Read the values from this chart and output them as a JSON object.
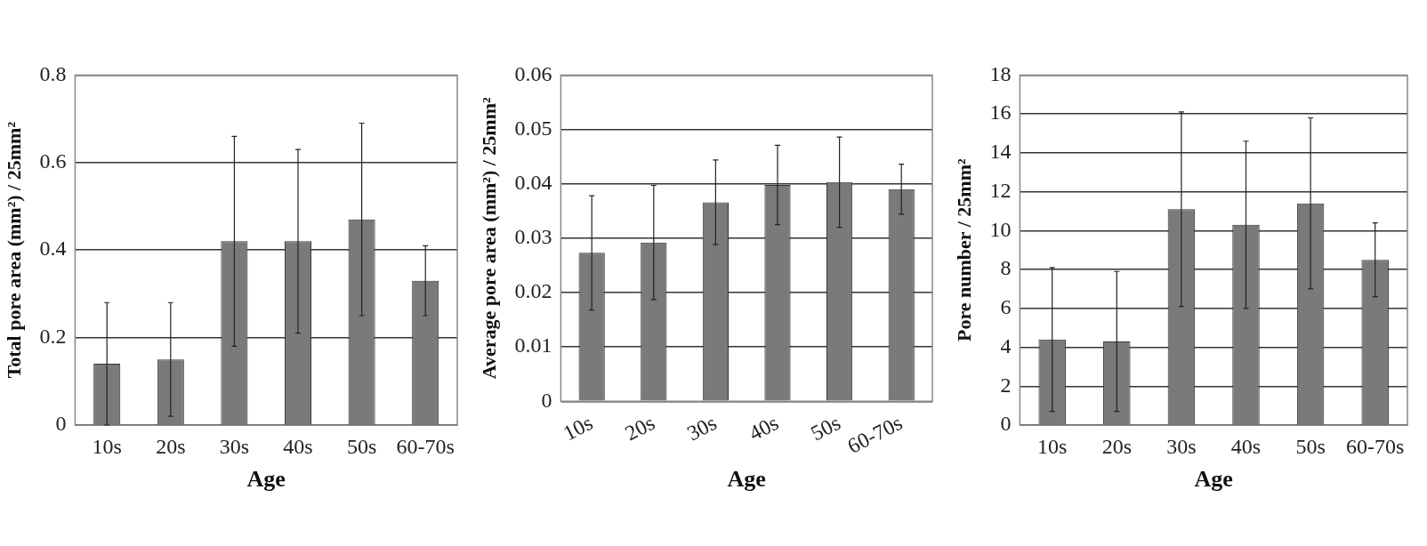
{
  "chart_data": [
    {
      "type": "bar",
      "categories": [
        "10s",
        "20s",
        "30s",
        "40s",
        "50s",
        "60-70s"
      ],
      "values": [
        0.14,
        0.15,
        0.42,
        0.42,
        0.47,
        0.33
      ],
      "errors": [
        0.14,
        0.13,
        0.24,
        0.21,
        0.22,
        0.08
      ],
      "color": "#7a7a7a",
      "xlabel": "Age",
      "ylabel": "Total pore area (mm²) / 25mm²",
      "ylim": [
        0,
        0.8
      ],
      "yticks": [
        0,
        0.2,
        0.4,
        0.6,
        0.8
      ],
      "grid": "y"
    },
    {
      "type": "bar",
      "categories": [
        "10s",
        "20s",
        "30s",
        "40s",
        "50s",
        "60-70s"
      ],
      "values": [
        0.0273,
        0.0292,
        0.0366,
        0.0398,
        0.0403,
        0.039
      ],
      "errors": [
        0.0105,
        0.0105,
        0.0078,
        0.0073,
        0.0083,
        0.0046
      ],
      "color": "#7a7a7a",
      "xlabel": "Age",
      "ylabel": "Average pore area (mm²) / 25mm²",
      "ylim": [
        0,
        0.06
      ],
      "yticks": [
        0,
        0.01,
        0.02,
        0.03,
        0.04,
        0.05,
        0.06
      ],
      "grid": "y"
    },
    {
      "type": "bar",
      "categories": [
        "10s",
        "20s",
        "30s",
        "40s",
        "50s",
        "60-70s"
      ],
      "values": [
        4.4,
        4.3,
        11.1,
        10.3,
        11.4,
        8.5
      ],
      "errors": [
        3.7,
        3.6,
        5.0,
        4.3,
        4.4,
        1.9
      ],
      "color": "#7a7a7a",
      "xlabel": "Age",
      "ylabel": "Pore number / 25mm²",
      "ylim": [
        0,
        18
      ],
      "yticks": [
        0,
        2,
        4,
        6,
        8,
        10,
        12,
        14,
        16,
        18
      ],
      "grid": "y"
    }
  ]
}
